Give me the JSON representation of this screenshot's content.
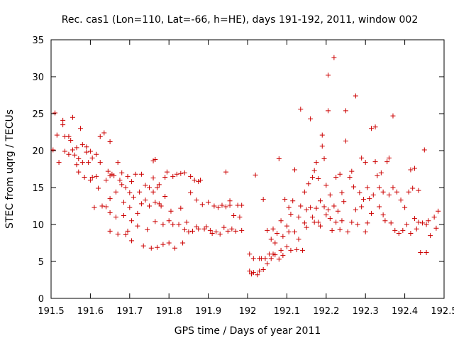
{
  "chart_data": {
    "type": "scatter",
    "title": "Rec. cas1 (Lon=110, Lat=-66, h=HE), days 191-192, 2011, window 002",
    "xlabel": "GPS time / Days of year 2011",
    "ylabel": "STEC from uqrg / TECUs",
    "xlim": [
      191.5,
      192.5
    ],
    "ylim": [
      0,
      35
    ],
    "xticks": [
      191.5,
      191.6,
      191.7,
      191.8,
      191.9,
      192,
      192.1,
      192.2,
      192.3,
      192.4,
      192.5
    ],
    "xtick_labels": [
      "191.5",
      "191.6",
      "191.7",
      "191.8",
      "191.9",
      "192",
      "192.1",
      "192.2",
      "192.3",
      "192.4",
      "192.5"
    ],
    "yticks": [
      0,
      5,
      10,
      15,
      20,
      25,
      30,
      35
    ],
    "ytick_labels": [
      "0",
      "5",
      "10",
      "15",
      "20",
      "25",
      "30",
      "35"
    ],
    "grid": false,
    "marker": "plus",
    "color": "#cc0000",
    "series": [
      {
        "points": [
          [
            191.505,
            20.1
          ],
          [
            191.51,
            25.1
          ],
          [
            191.515,
            22.1
          ],
          [
            191.52,
            18.4
          ],
          [
            191.53,
            23.5
          ],
          [
            191.53,
            24.1
          ],
          [
            191.535,
            21.9
          ],
          [
            191.535,
            19.9
          ],
          [
            191.545,
            21.9
          ],
          [
            191.545,
            19.5
          ],
          [
            191.55,
            21.4
          ],
          [
            191.555,
            24.5
          ],
          [
            191.555,
            20.1
          ],
          [
            191.56,
            19.4
          ],
          [
            191.565,
            18.1
          ],
          [
            191.565,
            20.4
          ],
          [
            191.57,
            17.1
          ],
          [
            191.57,
            18.9
          ],
          [
            191.575,
            23.0
          ],
          [
            191.58,
            18.4
          ],
          [
            191.58,
            20.8
          ],
          [
            191.585,
            16.4
          ],
          [
            191.59,
            19.8
          ],
          [
            191.59,
            20.5
          ],
          [
            191.595,
            18.4
          ],
          [
            191.6,
            16.0
          ],
          [
            191.6,
            19.9
          ],
          [
            191.605,
            16.4
          ],
          [
            191.605,
            19.0
          ],
          [
            191.61,
            12.3
          ],
          [
            191.615,
            16.5
          ],
          [
            191.615,
            19.5
          ],
          [
            191.62,
            14.9
          ],
          [
            191.625,
            21.9
          ],
          [
            191.625,
            18.4
          ],
          [
            191.63,
            12.5
          ],
          [
            191.635,
            22.4
          ],
          [
            191.64,
            16.0
          ],
          [
            191.64,
            12.4
          ],
          [
            191.645,
            17.2
          ],
          [
            191.65,
            21.2
          ],
          [
            191.65,
            16.6
          ],
          [
            191.65,
            13.5
          ],
          [
            191.65,
            11.6
          ],
          [
            191.65,
            9.1
          ],
          [
            191.655,
            16.8
          ],
          [
            191.66,
            16.6
          ],
          [
            191.665,
            14.4
          ],
          [
            191.665,
            11.0
          ],
          [
            191.67,
            18.4
          ],
          [
            191.67,
            8.7
          ],
          [
            191.675,
            16.0
          ],
          [
            191.68,
            17.0
          ],
          [
            191.68,
            15.4
          ],
          [
            191.685,
            13.0
          ],
          [
            191.685,
            11.2
          ],
          [
            191.69,
            8.6
          ],
          [
            191.69,
            15.0
          ],
          [
            191.695,
            16.5
          ],
          [
            191.695,
            9.1
          ],
          [
            191.7,
            14.3
          ],
          [
            191.7,
            12.3
          ],
          [
            191.705,
            15.8
          ],
          [
            191.705,
            10.5
          ],
          [
            191.705,
            7.8
          ],
          [
            191.71,
            13.7
          ],
          [
            191.715,
            16.8
          ],
          [
            191.72,
            11.5
          ],
          [
            191.72,
            9.8
          ],
          [
            191.725,
            14.4
          ],
          [
            191.73,
            16.8
          ],
          [
            191.73,
            12.8
          ],
          [
            191.735,
            7.1
          ],
          [
            191.74,
            15.3
          ],
          [
            191.74,
            13.3
          ],
          [
            191.745,
            9.3
          ],
          [
            191.75,
            15.0
          ],
          [
            191.75,
            12.5
          ],
          [
            191.755,
            6.8
          ],
          [
            191.76,
            18.6
          ],
          [
            191.76,
            16.3
          ],
          [
            191.76,
            14.4
          ],
          [
            191.765,
            18.8
          ],
          [
            191.765,
            13.0
          ],
          [
            191.765,
            10.4
          ],
          [
            191.77,
            15.0
          ],
          [
            191.77,
            6.9
          ],
          [
            191.775,
            15.4
          ],
          [
            191.775,
            12.8
          ],
          [
            191.78,
            12.5
          ],
          [
            191.785,
            7.3
          ],
          [
            191.785,
            10.0
          ],
          [
            191.79,
            16.4
          ],
          [
            191.79,
            13.8
          ],
          [
            191.795,
            17.1
          ],
          [
            191.8,
            10.5
          ],
          [
            191.8,
            7.5
          ],
          [
            191.805,
            11.8
          ],
          [
            191.81,
            16.5
          ],
          [
            191.81,
            10.0
          ],
          [
            191.815,
            6.8
          ],
          [
            191.82,
            16.8
          ],
          [
            191.825,
            10.0
          ],
          [
            191.83,
            16.9
          ],
          [
            191.83,
            12.2
          ],
          [
            191.835,
            7.5
          ],
          [
            191.84,
            17.0
          ],
          [
            191.84,
            9.3
          ],
          [
            191.845,
            10.3
          ],
          [
            191.85,
            9.0
          ],
          [
            191.855,
            16.5
          ],
          [
            191.855,
            14.3
          ],
          [
            191.86,
            9.1
          ],
          [
            191.865,
            16.0
          ],
          [
            191.87,
            13.3
          ],
          [
            191.87,
            9.7
          ],
          [
            191.875,
            15.8
          ],
          [
            191.875,
            9.4
          ],
          [
            191.88,
            16.0
          ],
          [
            191.885,
            12.7
          ],
          [
            191.89,
            9.4
          ],
          [
            191.895,
            9.7
          ],
          [
            191.9,
            13.0
          ],
          [
            191.905,
            9.2
          ],
          [
            191.91,
            8.8
          ],
          [
            191.915,
            12.5
          ],
          [
            191.92,
            9.0
          ],
          [
            191.925,
            12.3
          ],
          [
            191.93,
            8.7
          ],
          [
            191.935,
            12.6
          ],
          [
            191.94,
            9.6
          ],
          [
            191.945,
            17.1
          ],
          [
            191.945,
            12.4
          ],
          [
            191.95,
            9.1
          ],
          [
            191.955,
            13.2
          ],
          [
            191.955,
            12.6
          ],
          [
            191.96,
            9.4
          ],
          [
            191.965,
            11.2
          ],
          [
            191.97,
            9.1
          ],
          [
            191.975,
            12.6
          ],
          [
            191.98,
            11.0
          ],
          [
            191.985,
            9.2
          ],
          [
            191.985,
            12.6
          ],
          [
            192.005,
            6.0
          ],
          [
            192.005,
            3.7
          ],
          [
            192.01,
            3.3
          ],
          [
            192.015,
            5.4
          ],
          [
            192.015,
            3.5
          ],
          [
            192.02,
            16.7
          ],
          [
            192.025,
            3.2
          ],
          [
            192.03,
            5.4
          ],
          [
            192.03,
            3.7
          ],
          [
            192.035,
            5.4
          ],
          [
            192.04,
            3.9
          ],
          [
            192.04,
            13.4
          ],
          [
            192.045,
            5.4
          ],
          [
            192.05,
            9.2
          ],
          [
            192.05,
            4.7
          ],
          [
            192.055,
            6.0
          ],
          [
            192.06,
            5.4
          ],
          [
            192.06,
            8.0
          ],
          [
            192.065,
            6.0
          ],
          [
            192.065,
            9.4
          ],
          [
            192.07,
            7.5
          ],
          [
            192.07,
            5.9
          ],
          [
            192.075,
            8.8
          ],
          [
            192.08,
            5.3
          ],
          [
            192.08,
            18.9
          ],
          [
            192.085,
            10.5
          ],
          [
            192.085,
            6.5
          ],
          [
            192.09,
            5.8
          ],
          [
            192.09,
            8.4
          ],
          [
            192.095,
            13.4
          ],
          [
            192.1,
            9.8
          ],
          [
            192.1,
            7.0
          ],
          [
            192.105,
            12.3
          ],
          [
            192.105,
            9.0
          ],
          [
            192.11,
            11.4
          ],
          [
            192.11,
            6.5
          ],
          [
            192.115,
            13.2
          ],
          [
            192.12,
            17.4
          ],
          [
            192.12,
            9.0
          ],
          [
            192.125,
            6.6
          ],
          [
            192.13,
            11.0
          ],
          [
            192.13,
            8.0
          ],
          [
            192.135,
            25.6
          ],
          [
            192.135,
            12.5
          ],
          [
            192.14,
            6.5
          ],
          [
            192.145,
            14.4
          ],
          [
            192.145,
            10.2
          ],
          [
            192.15,
            12.0
          ],
          [
            192.15,
            9.6
          ],
          [
            192.155,
            15.5
          ],
          [
            192.16,
            24.3
          ],
          [
            192.16,
            12.3
          ],
          [
            192.165,
            16.4
          ],
          [
            192.165,
            11.0
          ],
          [
            192.17,
            17.3
          ],
          [
            192.17,
            10.3
          ],
          [
            192.175,
            18.4
          ],
          [
            192.175,
            12.2
          ],
          [
            192.18,
            16.2
          ],
          [
            192.18,
            10.3
          ],
          [
            192.185,
            13.2
          ],
          [
            192.185,
            9.8
          ],
          [
            192.19,
            22.1
          ],
          [
            192.19,
            20.6
          ],
          [
            192.195,
            18.9
          ],
          [
            192.195,
            12.4
          ],
          [
            192.2,
            11.3
          ],
          [
            192.2,
            15.3
          ],
          [
            192.205,
            30.2
          ],
          [
            192.205,
            25.4
          ],
          [
            192.205,
            12.0
          ],
          [
            192.21,
            14.0
          ],
          [
            192.21,
            10.8
          ],
          [
            192.215,
            9.2
          ],
          [
            192.22,
            32.6
          ],
          [
            192.22,
            12.5
          ],
          [
            192.225,
            16.4
          ],
          [
            192.225,
            10.3
          ],
          [
            192.23,
            11.8
          ],
          [
            192.235,
            16.8
          ],
          [
            192.235,
            9.3
          ],
          [
            192.24,
            14.3
          ],
          [
            192.24,
            10.5
          ],
          [
            192.245,
            13.1
          ],
          [
            192.25,
            25.4
          ],
          [
            192.25,
            21.3
          ],
          [
            192.255,
            9.0
          ],
          [
            192.26,
            16.4
          ],
          [
            192.265,
            17.2
          ],
          [
            192.265,
            10.3
          ],
          [
            192.27,
            15.1
          ],
          [
            192.275,
            27.4
          ],
          [
            192.275,
            12.0
          ],
          [
            192.28,
            10.0
          ],
          [
            192.285,
            14.3
          ],
          [
            192.29,
            19.0
          ],
          [
            192.29,
            12.4
          ],
          [
            192.295,
            13.4
          ],
          [
            192.3,
            18.4
          ],
          [
            192.3,
            9.0
          ],
          [
            192.305,
            15.0
          ],
          [
            192.305,
            10.2
          ],
          [
            192.31,
            13.5
          ],
          [
            192.315,
            23.0
          ],
          [
            192.315,
            11.5
          ],
          [
            192.32,
            14.0
          ],
          [
            192.325,
            23.2
          ],
          [
            192.325,
            18.5
          ],
          [
            192.33,
            16.6
          ],
          [
            192.335,
            12.4
          ],
          [
            192.335,
            15.0
          ],
          [
            192.34,
            17.0
          ],
          [
            192.345,
            11.3
          ],
          [
            192.345,
            14.4
          ],
          [
            192.35,
            10.5
          ],
          [
            192.355,
            18.5
          ],
          [
            192.36,
            19.0
          ],
          [
            192.36,
            14.0
          ],
          [
            192.365,
            10.2
          ],
          [
            192.37,
            24.7
          ],
          [
            192.37,
            15.0
          ],
          [
            192.375,
            9.2
          ],
          [
            192.38,
            14.4
          ],
          [
            192.385,
            8.8
          ],
          [
            192.39,
            13.3
          ],
          [
            192.395,
            9.2
          ],
          [
            192.4,
            12.3
          ],
          [
            192.405,
            10.0
          ],
          [
            192.41,
            14.4
          ],
          [
            192.415,
            17.4
          ],
          [
            192.415,
            8.8
          ],
          [
            192.42,
            14.9
          ],
          [
            192.425,
            17.6
          ],
          [
            192.425,
            10.8
          ],
          [
            192.43,
            9.4
          ],
          [
            192.435,
            14.6
          ],
          [
            192.435,
            10.3
          ],
          [
            192.44,
            6.2
          ],
          [
            192.445,
            10.2
          ],
          [
            192.45,
            20.1
          ],
          [
            192.455,
            6.2
          ],
          [
            192.455,
            10.0
          ],
          [
            192.46,
            10.5
          ],
          [
            192.465,
            8.5
          ],
          [
            192.475,
            11.0
          ],
          [
            192.48,
            9.5
          ],
          [
            192.485,
            11.8
          ]
        ]
      }
    ]
  }
}
